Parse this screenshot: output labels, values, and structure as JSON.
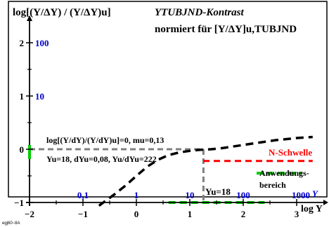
{
  "chart_data": {
    "type": "line",
    "y_axis_title": "log[(Y/ΔY) / (Y/ΔY)u]",
    "title_line1": "YTUBJND-Kontrast",
    "title_line2": "normiert für [Y/ΔY]u,TUBJND",
    "x_axis_label": "log Y",
    "y_axis_var": "Y",
    "xlim": [
      -2,
      3.3
    ],
    "ylim": [
      -1,
      2.3
    ],
    "x_ticks": [
      "−2",
      "−1",
      "0",
      "1",
      "2",
      "3"
    ],
    "y_ticks": [
      "−1",
      "0",
      "1",
      "2"
    ],
    "y_tick_labels_blue": [
      "10",
      "100"
    ],
    "x_tick_labels_blue": [
      "0,1",
      "1",
      "10",
      "100",
      "1000"
    ],
    "blue_label_y": "Y",
    "yu_marker_label": "Yu=18",
    "annotation_line1": "log[(Y/dY)/(Y/dY)u]=0, mu=0,13",
    "annotation_line2": "Yu=18, dYu=0,08, Yu/dYu=222",
    "threshold_label": "N-Schwelle",
    "range_label_line1": "Anwendungs-",
    "range_label_line2": "bereich",
    "footer_code": "egj60−8A",
    "curve": {
      "name": "",
      "x": [
        -0.7,
        -0.4,
        -0.2,
        0.0,
        0.2,
        0.4,
        0.6,
        0.8,
        1.0,
        1.2,
        1.4,
        1.6,
        1.8,
        2.0,
        2.2,
        2.4,
        2.6,
        2.8,
        3.0,
        3.3
      ],
      "y": [
        -1.06,
        -0.84,
        -0.68,
        -0.5,
        -0.33,
        -0.2,
        -0.11,
        -0.06,
        -0.03,
        -0.01,
        0.0,
        0.02,
        0.05,
        0.08,
        0.11,
        0.14,
        0.17,
        0.19,
        0.21,
        0.23
      ],
      "color": "#000000"
    },
    "threshold_line": {
      "y": -0.22,
      "x_start": 1.25,
      "x_end": 3.3,
      "color": "#ff0000"
    },
    "application_range": {
      "x_start": 0.6,
      "x_end": 2.4,
      "y": -1.0,
      "color": "#00cc00"
    },
    "range_marker": {
      "y": -0.45,
      "x_start": 2.25,
      "x_end": 3.1,
      "color": "#00cc00"
    },
    "yu_marker": {
      "x": 1.255,
      "y_top": 0.0,
      "y_bottom": -1.0,
      "color": "#808080"
    },
    "zero_ref": {
      "y": 0.0,
      "x_start": -2.0,
      "x_end": 1.255,
      "color": "#808080"
    },
    "colors": {
      "blue": "#0000cc",
      "red": "#ff0000",
      "green": "#00cc00",
      "grey": "#808080",
      "black": "#000000"
    }
  }
}
